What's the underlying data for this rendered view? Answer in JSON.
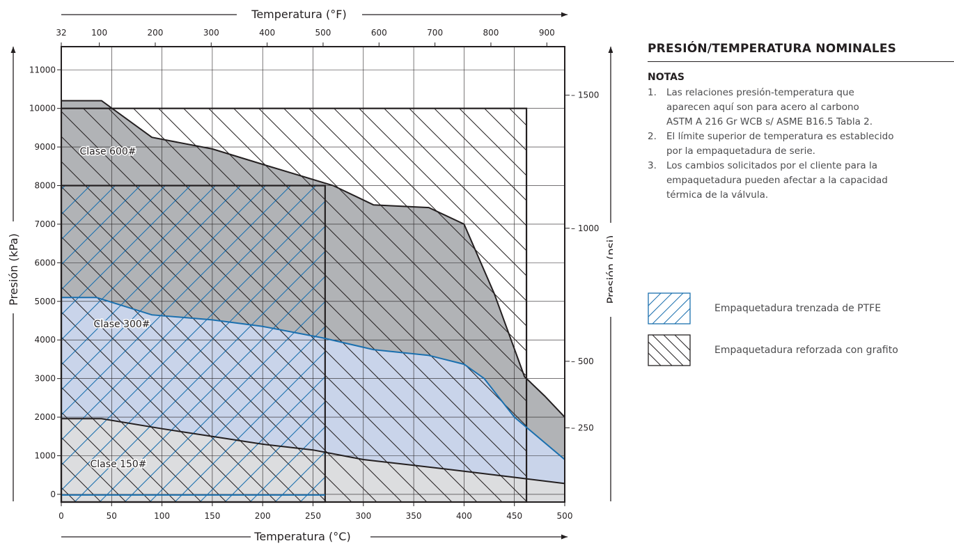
{
  "chart_data": {
    "type": "area",
    "x_top_label": "Temperatura (°F)",
    "x_bottom_label": "Temperatura (°C)",
    "y_left_label": "Presión (kPa)",
    "y_right_label": "Presión (psi)",
    "x_range_c": [
      0,
      500
    ],
    "y_range_kpa": [
      -200,
      11600
    ],
    "x_ticks_c": [
      0,
      50,
      100,
      150,
      200,
      250,
      300,
      350,
      400,
      450,
      500
    ],
    "x_ticks_f": [
      32,
      100,
      200,
      300,
      400,
      500,
      600,
      700,
      800,
      900
    ],
    "y_ticks_kpa": [
      0,
      1000,
      2000,
      3000,
      4000,
      5000,
      6000,
      7000,
      8000,
      9000,
      10000,
      11000
    ],
    "y_ticks_psi": [
      250,
      500,
      1000,
      1500
    ],
    "grid": true,
    "series": [
      {
        "name": "Clase 600#",
        "color": "#b1b3b6",
        "points": [
          [
            0,
            10200
          ],
          [
            40,
            10200
          ],
          [
            90,
            9250
          ],
          [
            150,
            8950
          ],
          [
            200,
            8550
          ],
          [
            270,
            8000
          ],
          [
            310,
            7500
          ],
          [
            365,
            7430
          ],
          [
            400,
            7000
          ],
          [
            430,
            5200
          ],
          [
            460,
            3050
          ],
          [
            480,
            2550
          ],
          [
            500,
            2000
          ]
        ]
      },
      {
        "name": "Clase 300#",
        "color": "#c9d4ea",
        "points": [
          [
            0,
            5100
          ],
          [
            35,
            5100
          ],
          [
            90,
            4650
          ],
          [
            150,
            4520
          ],
          [
            200,
            4350
          ],
          [
            260,
            4050
          ],
          [
            310,
            3750
          ],
          [
            365,
            3600
          ],
          [
            400,
            3370
          ],
          [
            420,
            3000
          ],
          [
            450,
            2000
          ],
          [
            500,
            900
          ]
        ]
      },
      {
        "name": "Clase 150#",
        "color": "#dcdddf",
        "points": [
          [
            0,
            1960
          ],
          [
            40,
            1960
          ],
          [
            100,
            1700
          ],
          [
            150,
            1500
          ],
          [
            200,
            1300
          ],
          [
            250,
            1150
          ],
          [
            300,
            900
          ],
          [
            350,
            750
          ],
          [
            400,
            600
          ],
          [
            450,
            440
          ],
          [
            500,
            280
          ]
        ]
      }
    ],
    "hatch_regions": [
      {
        "name": "Empaquetadura trenzada de PTFE",
        "x": [
          0,
          262
        ],
        "y_max": 8000,
        "color": "#1a6fae"
      },
      {
        "name": "Empaquetadura reforzada con grafito",
        "x": [
          0,
          462
        ],
        "y_max": 10000,
        "color": "#231f20"
      }
    ]
  },
  "sidebar": {
    "title": "PRESIÓN/TEMPERATURA NOMINALES",
    "notes_heading": "NOTAS",
    "notes": [
      {
        "num": "1.",
        "lines": [
          "Las relaciones presión-temperatura que",
          "aparecen aquí son para acero al carbono",
          "ASTM A 216 Gr WCB s/ ASME B16.5 Tabla 2."
        ]
      },
      {
        "num": "2.",
        "lines": [
          "El límite superior de temperatura es establecido",
          "por la empaquetadura de serie."
        ]
      },
      {
        "num": "3.",
        "lines": [
          "Los cambios solicitados por el cliente para la",
          "empaquetadura pueden afectar a la capacidad",
          "térmica de la válvula."
        ]
      }
    ]
  },
  "legend": [
    {
      "label": "Empaquetadura trenzada de PTFE",
      "color": "#1a6fae",
      "icon": "ptfe-hatch-swatch"
    },
    {
      "label": "Empaquetadura reforzada con grafito",
      "color": "#231f20",
      "icon": "graphite-hatch-swatch"
    }
  ]
}
